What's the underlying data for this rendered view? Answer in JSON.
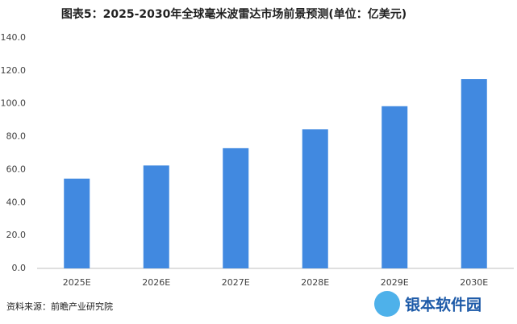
{
  "chart_data": {
    "type": "bar",
    "title": "图表5：2025-2030年全球毫米波雷达市场前景预测(单位：亿美元)",
    "categories": [
      "2025E",
      "2026E",
      "2027E",
      "2028E",
      "2029E",
      "2030E"
    ],
    "values": [
      54.5,
      62.5,
      73,
      84.5,
      98.5,
      115
    ],
    "color": "#4189e0",
    "ylim": [
      0,
      140
    ],
    "yticks": [
      {
        "value": 0,
        "label": "0.0"
      },
      {
        "value": 20,
        "label": "20.0"
      },
      {
        "value": 40,
        "label": "40.0"
      },
      {
        "value": 60,
        "label": "60.0"
      },
      {
        "value": 80,
        "label": "80.0"
      },
      {
        "value": 100,
        "label": "100.0"
      },
      {
        "value": 120,
        "label": "120.0"
      },
      {
        "value": 140,
        "label": "140.0"
      }
    ],
    "grid": false,
    "source": "资料来源：前瞻产业研究院",
    "watermark": "银本软件园"
  }
}
